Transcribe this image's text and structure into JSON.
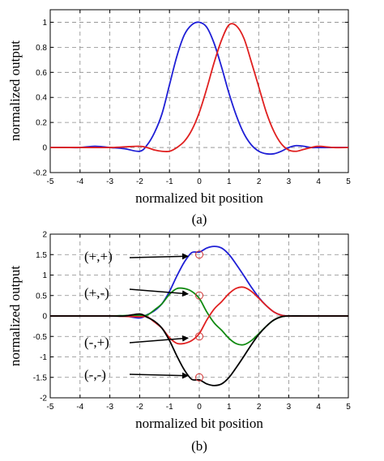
{
  "colors": {
    "blue": "#1f1fd6",
    "red": "#e02020",
    "green": "#118a11",
    "black": "#000000"
  },
  "chart_data": [
    {
      "type": "line",
      "panel_label": "(a)",
      "xlabel": "normalized bit position",
      "ylabel": "normalized output",
      "xlim": [
        -5,
        5
      ],
      "ylim": [
        -0.2,
        1.1
      ],
      "xticks": [
        "-5",
        "-4",
        "-3",
        "-2",
        "-1",
        "0",
        "1",
        "2",
        "3",
        "4",
        "5"
      ],
      "yticks": [
        "-0.2",
        "0",
        "0.2",
        "0.4",
        "0.6",
        "0.8",
        "1"
      ],
      "ytick_values": [
        -0.2,
        0,
        0.2,
        0.4,
        0.6,
        0.8,
        1.0
      ],
      "grid": true,
      "x": [
        -5,
        -4.5,
        -4,
        -3.5,
        -3,
        -2.5,
        -2,
        -1.75,
        -1.5,
        -1.25,
        -1,
        -0.75,
        -0.5,
        -0.25,
        0,
        0.25,
        0.5,
        0.75,
        1,
        1.25,
        1.5,
        1.75,
        2,
        2.25,
        2.5,
        2.75,
        3,
        3.25,
        3.5,
        3.75,
        4,
        4.5,
        5
      ],
      "series": [
        {
          "color": "blue",
          "values": [
            0,
            0,
            0,
            0.01,
            0,
            -0.01,
            -0.03,
            0.02,
            0.12,
            0.27,
            0.5,
            0.73,
            0.9,
            0.98,
            1.0,
            0.96,
            0.83,
            0.64,
            0.43,
            0.25,
            0.11,
            0.02,
            -0.03,
            -0.05,
            -0.05,
            -0.03,
            0,
            0.015,
            0.01,
            0,
            0,
            0,
            0
          ]
        },
        {
          "color": "red",
          "values": [
            0,
            0,
            0,
            0,
            0,
            0.005,
            0.01,
            0,
            -0.02,
            -0.03,
            -0.03,
            0,
            0.05,
            0.14,
            0.28,
            0.47,
            0.68,
            0.86,
            0.98,
            0.97,
            0.87,
            0.68,
            0.48,
            0.28,
            0.13,
            0.03,
            -0.02,
            -0.03,
            -0.015,
            0,
            0.01,
            0,
            0
          ]
        }
      ]
    },
    {
      "type": "line",
      "panel_label": "(b)",
      "xlabel": "normalized bit position",
      "ylabel": "normalized output",
      "xlim": [
        -5,
        5
      ],
      "ylim": [
        -2,
        2
      ],
      "xticks": [
        "-5",
        "-4",
        "-3",
        "-2",
        "-1",
        "0",
        "1",
        "2",
        "3",
        "4",
        "5"
      ],
      "yticks": [
        "-2",
        "-1.5",
        "-1",
        "-0.5",
        "0",
        "0.5",
        "1",
        "1.5",
        "2"
      ],
      "ytick_values": [
        -2,
        -1.5,
        -1,
        -0.5,
        0,
        0.5,
        1,
        1.5,
        2
      ],
      "grid": true,
      "x": [
        -5,
        -4,
        -3,
        -2.5,
        -2,
        -1.75,
        -1.5,
        -1.25,
        -1,
        -0.75,
        -0.5,
        -0.25,
        0,
        0.25,
        0.5,
        0.75,
        1,
        1.25,
        1.5,
        1.75,
        2,
        2.25,
        2.5,
        2.75,
        3,
        3.5,
        4,
        5
      ],
      "series": [
        {
          "color": "blue",
          "values": [
            0,
            0,
            0,
            0,
            -0.05,
            0.03,
            0.13,
            0.3,
            0.6,
            0.98,
            1.32,
            1.55,
            1.56,
            1.66,
            1.7,
            1.66,
            1.5,
            1.25,
            0.98,
            0.7,
            0.45,
            0.25,
            0.1,
            0.02,
            0,
            0,
            0,
            0
          ]
        },
        {
          "color": "green",
          "values": [
            0,
            0,
            0,
            0.01,
            0.02,
            0.02,
            0.15,
            0.3,
            0.53,
            0.67,
            0.67,
            0.6,
            0.43,
            0.1,
            -0.17,
            -0.35,
            -0.55,
            -0.68,
            -0.7,
            -0.6,
            -0.43,
            -0.25,
            -0.1,
            -0.02,
            0,
            0,
            0,
            0
          ]
        },
        {
          "color": "red",
          "values": [
            0,
            0,
            0,
            -0.01,
            -0.02,
            -0.02,
            -0.15,
            -0.3,
            -0.53,
            -0.67,
            -0.67,
            -0.6,
            -0.43,
            -0.1,
            0.17,
            0.35,
            0.55,
            0.68,
            0.7,
            0.6,
            0.43,
            0.25,
            0.1,
            0.02,
            0,
            0,
            0,
            0
          ]
        },
        {
          "color": "black",
          "values": [
            0,
            0,
            0,
            0,
            0.05,
            -0.03,
            -0.13,
            -0.3,
            -0.6,
            -0.98,
            -1.32,
            -1.55,
            -1.56,
            -1.66,
            -1.7,
            -1.66,
            -1.5,
            -1.25,
            -0.98,
            -0.7,
            -0.45,
            -0.25,
            -0.1,
            -0.02,
            0,
            0,
            0,
            0
          ]
        }
      ],
      "markers": [
        {
          "x": 0,
          "y": 1.5
        },
        {
          "x": 0,
          "y": 0.5
        },
        {
          "x": 0,
          "y": -0.5
        },
        {
          "x": 0,
          "y": -1.5
        }
      ],
      "annotations": [
        {
          "text": "(+,+)",
          "x": 0,
          "y": 1.5
        },
        {
          "text": "(+,-)",
          "x": 0,
          "y": 0.5
        },
        {
          "text": "(-,+)",
          "x": 0,
          "y": -0.5
        },
        {
          "text": "(-,-)",
          "x": 0,
          "y": -1.5
        }
      ]
    }
  ]
}
